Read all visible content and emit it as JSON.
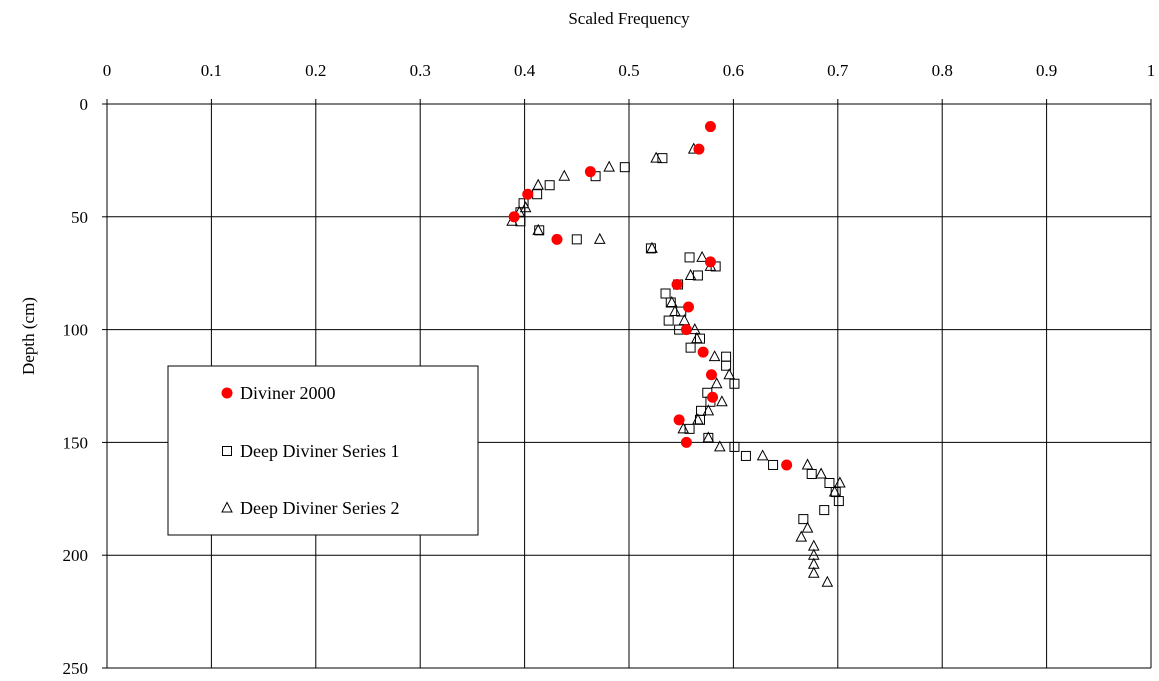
{
  "chart_data": {
    "type": "scatter",
    "xlabel": "Scaled Frequency",
    "ylabel": "Depth (cm)",
    "xlim": [
      0,
      1
    ],
    "ylim": [
      0,
      250
    ],
    "y_inverted": true,
    "x_axis_position": "top",
    "x_ticks": [
      "0",
      "0.1",
      "0.2",
      "0.3",
      "0.4",
      "0.5",
      "0.6",
      "0.7",
      "0.8",
      "0.9",
      "1"
    ],
    "y_ticks": [
      "0",
      "50",
      "100",
      "150",
      "200",
      "250"
    ],
    "grid": true,
    "legend_position": "left",
    "series": [
      {
        "name": "Diviner 2000",
        "marker": "filled-circle",
        "color": "#ff0000",
        "points": [
          [
            0.578,
            10
          ],
          [
            0.567,
            20
          ],
          [
            0.463,
            30
          ],
          [
            0.403,
            40
          ],
          [
            0.39,
            50
          ],
          [
            0.431,
            60
          ],
          [
            0.578,
            70
          ],
          [
            0.546,
            80
          ],
          [
            0.557,
            90
          ],
          [
            0.555,
            100
          ],
          [
            0.571,
            110
          ],
          [
            0.579,
            120
          ],
          [
            0.58,
            130
          ],
          [
            0.548,
            140
          ],
          [
            0.555,
            150
          ],
          [
            0.651,
            160
          ]
        ]
      },
      {
        "name": "Deep Diviner Series 1",
        "marker": "open-square",
        "color": "#000000",
        "points": [
          [
            0.532,
            24
          ],
          [
            0.496,
            28
          ],
          [
            0.468,
            32
          ],
          [
            0.424,
            36
          ],
          [
            0.412,
            40
          ],
          [
            0.399,
            44
          ],
          [
            0.396,
            48
          ],
          [
            0.396,
            52
          ],
          [
            0.414,
            56
          ],
          [
            0.45,
            60
          ],
          [
            0.521,
            64
          ],
          [
            0.558,
            68
          ],
          [
            0.583,
            72
          ],
          [
            0.566,
            76
          ],
          [
            0.547,
            80
          ],
          [
            0.535,
            84
          ],
          [
            0.54,
            88
          ],
          [
            0.55,
            92
          ],
          [
            0.538,
            96
          ],
          [
            0.548,
            100
          ],
          [
            0.568,
            104
          ],
          [
            0.559,
            108
          ],
          [
            0.593,
            112
          ],
          [
            0.593,
            116
          ],
          [
            0.601,
            124
          ],
          [
            0.575,
            128
          ],
          [
            0.578,
            132
          ],
          [
            0.569,
            136
          ],
          [
            0.568,
            140
          ],
          [
            0.558,
            144
          ],
          [
            0.576,
            148
          ],
          [
            0.601,
            152
          ],
          [
            0.612,
            156
          ],
          [
            0.638,
            160
          ],
          [
            0.675,
            164
          ],
          [
            0.692,
            168
          ],
          [
            0.698,
            172
          ],
          [
            0.701,
            176
          ],
          [
            0.687,
            180
          ],
          [
            0.667,
            184
          ]
        ]
      },
      {
        "name": "Deep Diviner Series 2",
        "marker": "open-triangle",
        "color": "#000000",
        "points": [
          [
            0.562,
            20
          ],
          [
            0.526,
            24
          ],
          [
            0.481,
            28
          ],
          [
            0.438,
            32
          ],
          [
            0.413,
            36
          ],
          [
            0.401,
            46
          ],
          [
            0.395,
            48
          ],
          [
            0.388,
            52
          ],
          [
            0.413,
            56
          ],
          [
            0.472,
            60
          ],
          [
            0.522,
            64
          ],
          [
            0.57,
            68
          ],
          [
            0.578,
            72
          ],
          [
            0.559,
            76
          ],
          [
            0.541,
            88
          ],
          [
            0.544,
            92
          ],
          [
            0.553,
            96
          ],
          [
            0.563,
            100
          ],
          [
            0.565,
            104
          ],
          [
            0.582,
            112
          ],
          [
            0.596,
            120
          ],
          [
            0.584,
            124
          ],
          [
            0.589,
            132
          ],
          [
            0.576,
            136
          ],
          [
            0.566,
            140
          ],
          [
            0.552,
            144
          ],
          [
            0.576,
            148
          ],
          [
            0.587,
            152
          ],
          [
            0.628,
            156
          ],
          [
            0.671,
            160
          ],
          [
            0.684,
            164
          ],
          [
            0.702,
            168
          ],
          [
            0.697,
            172
          ],
          [
            0.671,
            188
          ],
          [
            0.665,
            192
          ],
          [
            0.677,
            196
          ],
          [
            0.677,
            200
          ],
          [
            0.677,
            204
          ],
          [
            0.677,
            208
          ],
          [
            0.69,
            212
          ]
        ]
      }
    ]
  }
}
